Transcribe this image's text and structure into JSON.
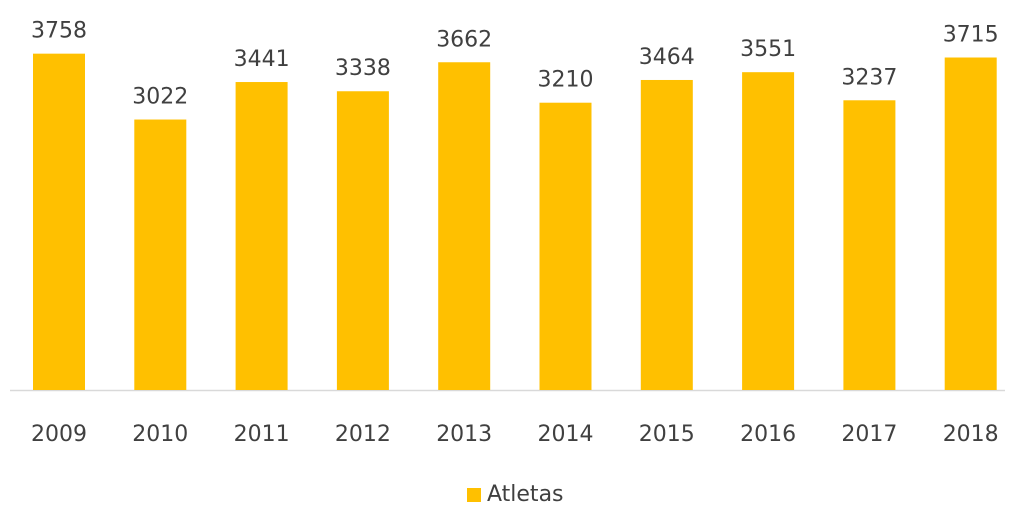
{
  "chart_data": {
    "type": "bar",
    "categories": [
      "2009",
      "2010",
      "2011",
      "2012",
      "2013",
      "2014",
      "2015",
      "2016",
      "2017",
      "2018"
    ],
    "series": [
      {
        "name": "Atletas",
        "color": "#ffc000",
        "values": [
          3758,
          3022,
          3441,
          3338,
          3662,
          3210,
          3464,
          3551,
          3237,
          3715
        ]
      }
    ],
    "ylim": [
      0,
      4000
    ],
    "legend": "bottom"
  }
}
